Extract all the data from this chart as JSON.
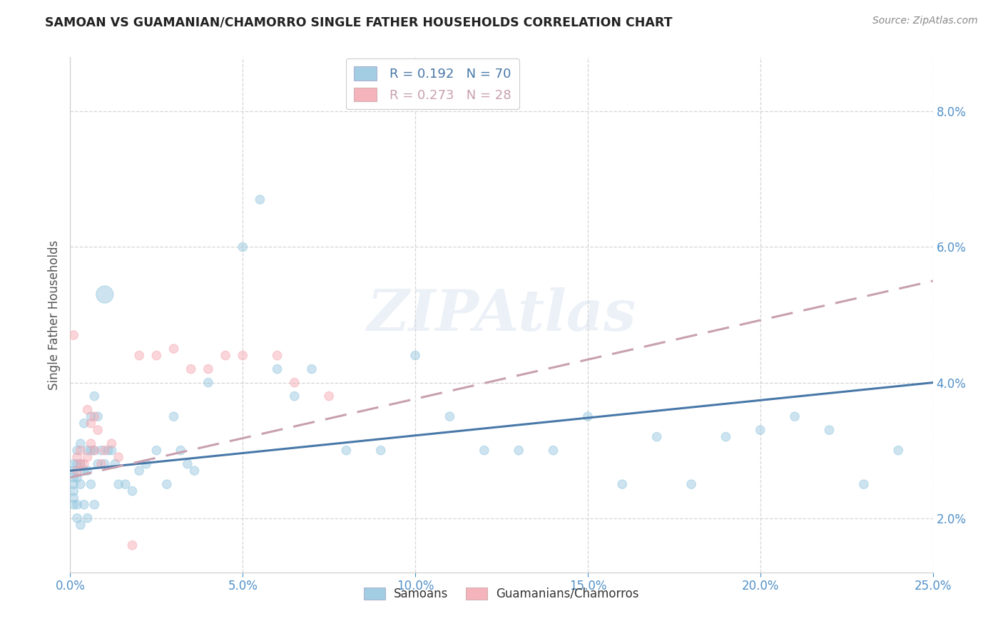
{
  "title": "SAMOAN VS GUAMANIAN/CHAMORRO SINGLE FATHER HOUSEHOLDS CORRELATION CHART",
  "source": "Source: ZipAtlas.com",
  "ylabel": "Single Father Households",
  "samoans_label": "Samoans",
  "guamanians_label": "Guamanians/Chamorros",
  "legend1_r": "0.192",
  "legend1_n": "70",
  "legend2_r": "0.273",
  "legend2_n": "28",
  "blue_color": "#92c5de",
  "pink_color": "#f4a6b0",
  "blue_line_color": "#4878a8",
  "pink_line_color": "#c8a0b0",
  "watermark": "ZIPAtlas",
  "xlim": [
    0.0,
    0.25
  ],
  "ylim": [
    0.012,
    0.088
  ],
  "xtick_vals": [
    0.0,
    0.05,
    0.1,
    0.15,
    0.2,
    0.25
  ],
  "ytick_vals": [
    0.02,
    0.04,
    0.06,
    0.08
  ],
  "samoans_x": [
    0.001,
    0.001,
    0.001,
    0.001,
    0.001,
    0.001,
    0.001,
    0.002,
    0.002,
    0.002,
    0.002,
    0.002,
    0.003,
    0.003,
    0.003,
    0.003,
    0.004,
    0.004,
    0.004,
    0.005,
    0.005,
    0.005,
    0.006,
    0.006,
    0.006,
    0.007,
    0.007,
    0.007,
    0.008,
    0.008,
    0.009,
    0.01,
    0.01,
    0.011,
    0.012,
    0.013,
    0.014,
    0.016,
    0.018,
    0.02,
    0.022,
    0.025,
    0.028,
    0.03,
    0.032,
    0.034,
    0.036,
    0.04,
    0.05,
    0.055,
    0.06,
    0.065,
    0.07,
    0.08,
    0.09,
    0.1,
    0.11,
    0.12,
    0.13,
    0.14,
    0.15,
    0.16,
    0.17,
    0.18,
    0.19,
    0.2,
    0.21,
    0.22,
    0.23,
    0.24
  ],
  "samoans_y": [
    0.028,
    0.027,
    0.026,
    0.025,
    0.024,
    0.023,
    0.022,
    0.03,
    0.028,
    0.026,
    0.022,
    0.02,
    0.031,
    0.028,
    0.025,
    0.019,
    0.034,
    0.027,
    0.022,
    0.03,
    0.027,
    0.02,
    0.035,
    0.03,
    0.025,
    0.038,
    0.03,
    0.022,
    0.035,
    0.028,
    0.03,
    0.053,
    0.028,
    0.03,
    0.03,
    0.028,
    0.025,
    0.025,
    0.024,
    0.027,
    0.028,
    0.03,
    0.025,
    0.035,
    0.03,
    0.028,
    0.027,
    0.04,
    0.06,
    0.067,
    0.042,
    0.038,
    0.042,
    0.03,
    0.03,
    0.044,
    0.035,
    0.03,
    0.03,
    0.03,
    0.035,
    0.025,
    0.032,
    0.025,
    0.032,
    0.033,
    0.035,
    0.033,
    0.025,
    0.03
  ],
  "samoans_sizes": [
    80,
    80,
    80,
    80,
    80,
    80,
    80,
    80,
    80,
    80,
    80,
    80,
    80,
    80,
    80,
    80,
    80,
    80,
    80,
    80,
    80,
    80,
    80,
    80,
    80,
    80,
    80,
    80,
    80,
    80,
    80,
    300,
    80,
    80,
    80,
    80,
    80,
    80,
    80,
    80,
    80,
    80,
    80,
    80,
    80,
    80,
    80,
    80,
    80,
    80,
    80,
    80,
    80,
    80,
    80,
    80,
    80,
    80,
    80,
    80,
    80,
    80,
    80,
    80,
    80,
    80,
    80,
    80,
    80,
    80
  ],
  "guamanians_x": [
    0.001,
    0.002,
    0.002,
    0.003,
    0.003,
    0.004,
    0.005,
    0.005,
    0.006,
    0.006,
    0.007,
    0.007,
    0.008,
    0.009,
    0.01,
    0.012,
    0.014,
    0.018,
    0.02,
    0.025,
    0.03,
    0.035,
    0.04,
    0.045,
    0.05,
    0.06,
    0.065,
    0.075
  ],
  "guamanians_y": [
    0.047,
    0.029,
    0.027,
    0.03,
    0.028,
    0.028,
    0.036,
    0.029,
    0.034,
    0.031,
    0.035,
    0.03,
    0.033,
    0.028,
    0.03,
    0.031,
    0.029,
    0.016,
    0.044,
    0.044,
    0.045,
    0.042,
    0.042,
    0.044,
    0.044,
    0.044,
    0.04,
    0.038
  ],
  "guamanians_sizes": [
    80,
    80,
    80,
    80,
    80,
    80,
    80,
    80,
    80,
    80,
    80,
    80,
    80,
    80,
    80,
    80,
    80,
    80,
    80,
    80,
    80,
    80,
    80,
    80,
    80,
    80,
    80,
    80
  ],
  "blue_line_start_y": 0.027,
  "blue_line_end_y": 0.04,
  "pink_line_start_y": 0.026,
  "pink_line_end_y": 0.055
}
